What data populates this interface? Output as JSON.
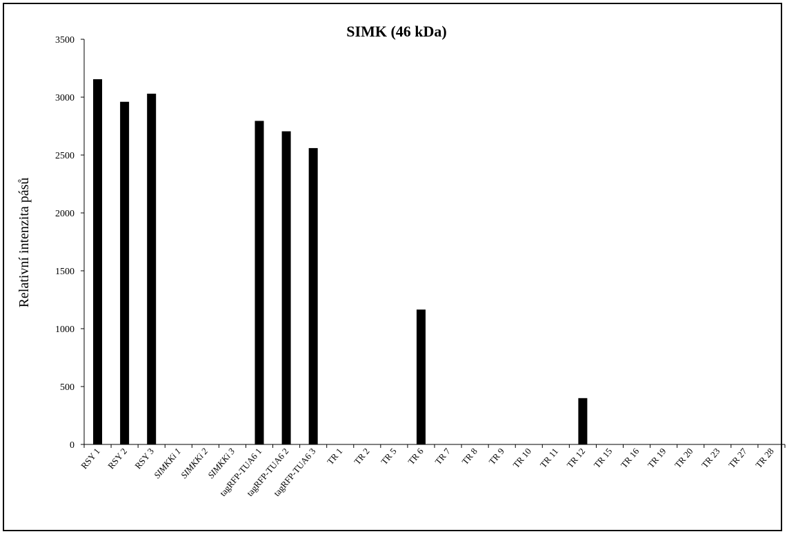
{
  "chart_data": {
    "type": "bar",
    "title": "SIMK (46 kDa)",
    "xlabel": "",
    "ylabel": "Relativní intenzita pásů",
    "ylim": [
      0,
      3500
    ],
    "yticks": [
      0,
      500,
      1000,
      1500,
      2000,
      2500,
      3000,
      3500
    ],
    "categories": [
      {
        "label": "RSY 1",
        "italic": false
      },
      {
        "label": "RSY 2",
        "italic": false
      },
      {
        "label": "RSY 3",
        "italic": false
      },
      {
        "label": "SIMKKi 1",
        "italic": true
      },
      {
        "label": "SIMKKi 2",
        "italic": true
      },
      {
        "label": "SIMKKi 3",
        "italic": true
      },
      {
        "label": "tagRFP-TUA6 1",
        "italic": false
      },
      {
        "label": "tagRFP-TUA6 2",
        "italic": false
      },
      {
        "label": "tagRFP-TUA6 3",
        "italic": false
      },
      {
        "label": "TR 1",
        "italic": false
      },
      {
        "label": "TR 2",
        "italic": false
      },
      {
        "label": "TR 5",
        "italic": false
      },
      {
        "label": "TR 6",
        "italic": false
      },
      {
        "label": "TR 7",
        "italic": false
      },
      {
        "label": "TR 8",
        "italic": false
      },
      {
        "label": "TR 9",
        "italic": false
      },
      {
        "label": "TR 10",
        "italic": false
      },
      {
        "label": "TR 11",
        "italic": false
      },
      {
        "label": "TR 12",
        "italic": false
      },
      {
        "label": "TR 15",
        "italic": false
      },
      {
        "label": "TR 16",
        "italic": false
      },
      {
        "label": "TR 19",
        "italic": false
      },
      {
        "label": "TR 20",
        "italic": false
      },
      {
        "label": "TR 23",
        "italic": false
      },
      {
        "label": "TR 27",
        "italic": false
      },
      {
        "label": "TR 28",
        "italic": false
      }
    ],
    "values": [
      3155,
      2960,
      3030,
      0,
      0,
      0,
      2795,
      2705,
      2560,
      0,
      0,
      0,
      1165,
      0,
      0,
      0,
      0,
      0,
      400,
      0,
      0,
      0,
      0,
      0,
      0,
      0
    ],
    "grid": false,
    "legend": "none",
    "bar_color": "#000000"
  }
}
